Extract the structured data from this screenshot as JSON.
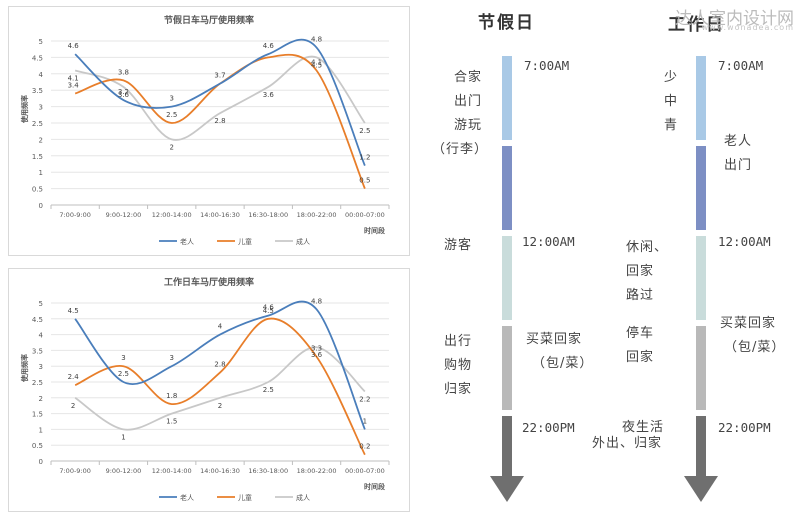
{
  "chart_data": [
    {
      "type": "line",
      "title": "节假日车马厅使用频率",
      "xlabel": "时间段",
      "ylabel": "使用频率",
      "ylim": [
        0,
        5
      ],
      "yticks": [
        "0",
        "0.5",
        "1",
        "1.5",
        "2",
        "2.5",
        "3",
        "3.5",
        "4",
        "4.5",
        "5"
      ],
      "categories": [
        "7:00-9:00",
        "9:00-12:00",
        "12:00-14:00",
        "14:00-16:30",
        "16:30-18:00",
        "18:00-22:00",
        "00:00-07:00"
      ],
      "legend_position": "bottom",
      "grid": true,
      "series": [
        {
          "name": "老人",
          "color": "#4a7ebb",
          "values": [
            4.6,
            3.2,
            3,
            3.7,
            4.6,
            4.8,
            1.2
          ],
          "labels": [
            "4.6",
            "3.2",
            "3",
            "3.7",
            "4.6",
            "4.8",
            "1.2"
          ]
        },
        {
          "name": "儿童",
          "color": "#e87e2a",
          "values": [
            3.4,
            3.8,
            2.5,
            3.7,
            4.5,
            4.1,
            0.5
          ],
          "labels": [
            "3.4",
            "3.8",
            "2.5",
            "",
            "",
            "4.1",
            "0.5"
          ]
        },
        {
          "name": "成人",
          "color": "#c8c8c8",
          "values": [
            4.1,
            3.6,
            2,
            2.8,
            3.6,
            4.5,
            2.5
          ],
          "labels": [
            "4.1",
            "3.6",
            "2",
            "2.8",
            "3.6",
            "4.5",
            "2.5"
          ]
        }
      ]
    },
    {
      "type": "line",
      "title": "工作日车马厅使用频率",
      "xlabel": "时间段",
      "ylabel": "使用频率",
      "ylim": [
        0,
        5
      ],
      "yticks": [
        "0",
        "0.5",
        "1",
        "1.5",
        "2",
        "2.5",
        "3",
        "3.5",
        "4",
        "4.5",
        "5"
      ],
      "categories": [
        "7:00-9:00",
        "9:00-12:00",
        "12:00-14:00",
        "14:00-16:30",
        "16:30-18:00",
        "18:00-22:00",
        "00:00-07:00"
      ],
      "legend_position": "bottom",
      "grid": true,
      "series": [
        {
          "name": "老人",
          "color": "#4a7ebb",
          "values": [
            4.5,
            2.5,
            3,
            4,
            4.6,
            4.8,
            1
          ],
          "labels": [
            "4.5",
            "2.5",
            "3",
            "4",
            "4.6",
            "4.8",
            "1"
          ]
        },
        {
          "name": "儿童",
          "color": "#e87e2a",
          "values": [
            2.4,
            3,
            1.8,
            2.8,
            4.5,
            3.3,
            0.2
          ],
          "labels": [
            "2.4",
            "3",
            "1.8",
            "2.8",
            "4.5",
            "3.3",
            "0.2"
          ]
        },
        {
          "name": "成人",
          "color": "#c8c8c8",
          "values": [
            2,
            1,
            1.5,
            2,
            2.5,
            3.6,
            2.2
          ],
          "labels": [
            "2",
            "1",
            "1.5",
            "2",
            "2.5",
            "3.6",
            "2.2"
          ]
        }
      ]
    }
  ],
  "timeline": {
    "holiday_heading": "节假日",
    "workday_heading": "工作日",
    "holiday": {
      "times": [
        "7:00AM",
        "12:00AM",
        "22:00PM"
      ],
      "left_notes": [
        "合家",
        "出门",
        "游玩",
        "（行李）",
        "游客",
        "出行",
        "购物",
        "归家"
      ],
      "right_notes": [
        "买菜回家",
        "（包/菜）",
        "夜生活",
        "外出、归家"
      ]
    },
    "workday": {
      "times": [
        "7:00AM",
        "12:00AM",
        "22:00PM"
      ],
      "left_notes": [
        "少",
        "中",
        "青",
        "休闲、",
        "回家",
        "路过",
        "停车",
        "回家"
      ],
      "right_notes": [
        "老人",
        "出门",
        "买菜回家",
        "（包/菜）"
      ]
    },
    "segment_colors": [
      "#a9c9e6",
      "#7d8fc4",
      "#c9dcdb",
      "#b9b9b9",
      "#6f6f6f"
    ],
    "arrow_color": "#6f6f6f"
  },
  "watermark": {
    "text": "达人室内设计网",
    "url": "www.wonadea.com"
  }
}
